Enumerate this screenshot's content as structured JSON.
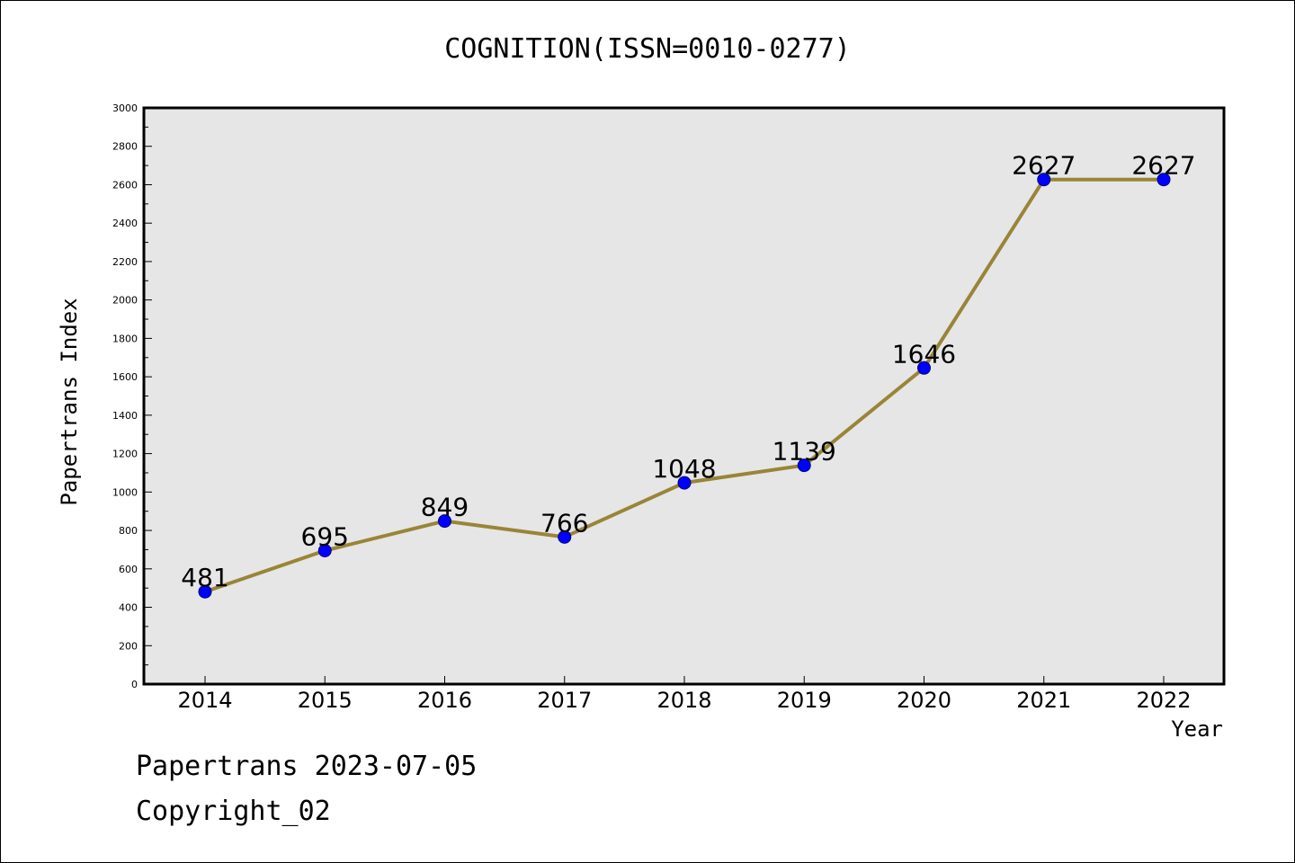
{
  "chart_data": {
    "type": "line",
    "title": "COGNITION(ISSN=0010-0277)",
    "xlabel": "Year",
    "ylabel": "Papertrans Index",
    "categories": [
      "2014",
      "2015",
      "2016",
      "2017",
      "2018",
      "2019",
      "2020",
      "2021",
      "2022"
    ],
    "series": [
      {
        "values": [
          481,
          695,
          849,
          766,
          1048,
          1139,
          1646,
          2627,
          2627
        ]
      }
    ],
    "data_labels": [
      "481",
      "695",
      "849",
      "766",
      "1048",
      "1139",
      "1646",
      "2627",
      "2627"
    ],
    "ylim": [
      0,
      3000
    ],
    "yticks": [
      0,
      200,
      400,
      600,
      800,
      1000,
      1200,
      1400,
      1600,
      1800,
      2000,
      2200,
      2400,
      2600,
      2800,
      3000
    ],
    "ytick_labels": [
      "0",
      "200",
      "400",
      "600",
      "800",
      "1000",
      "1200",
      "1400",
      "1600",
      "1800",
      "2000",
      "2200",
      "2400",
      "2600",
      "2800",
      "3000"
    ],
    "grid": false,
    "legend": "none",
    "colors": {
      "line": "#998537",
      "marker": "#0000ff",
      "marker_edge": "#000080",
      "plot_background": "#e6e6e6"
    }
  },
  "footer": {
    "line1": "Papertrans 2023-07-05",
    "line2": "Copyright_02"
  }
}
